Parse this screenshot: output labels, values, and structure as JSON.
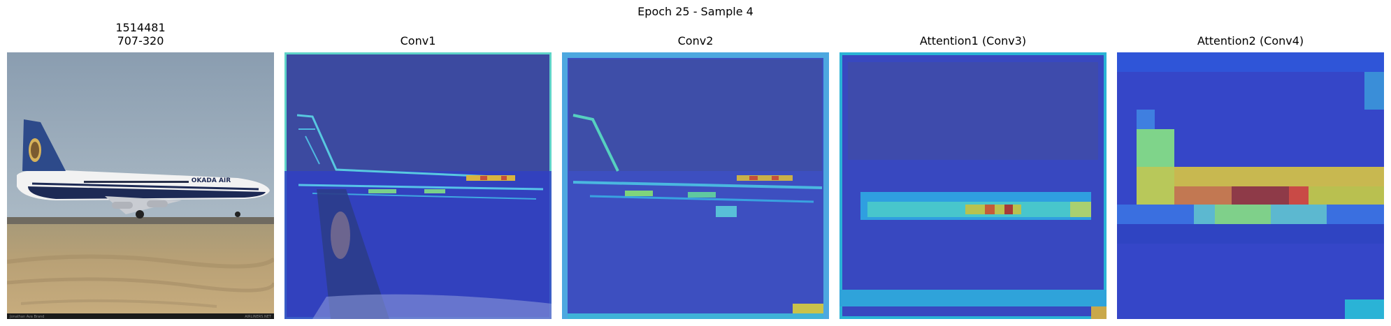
{
  "figure": {
    "suptitle": "Epoch 25 - Sample 4",
    "panels": [
      {
        "title_line1": "1514481",
        "title_line2": "707-320"
      },
      {
        "title": "Conv1"
      },
      {
        "title": "Conv2"
      },
      {
        "title": "Attention1 (Conv3)"
      },
      {
        "title": "Attention2 (Conv4)"
      }
    ],
    "photo": {
      "livery_text": "OKADA AIR",
      "credit_left": "Jonathan Ava Brand",
      "credit_right": "AIRLINERS.NET"
    },
    "colors": {
      "cold": "#3344cc",
      "cool": "#2ab3d6",
      "mid": "#7ad08a",
      "warm": "#c9c24a",
      "hot": "#b8453d"
    }
  }
}
